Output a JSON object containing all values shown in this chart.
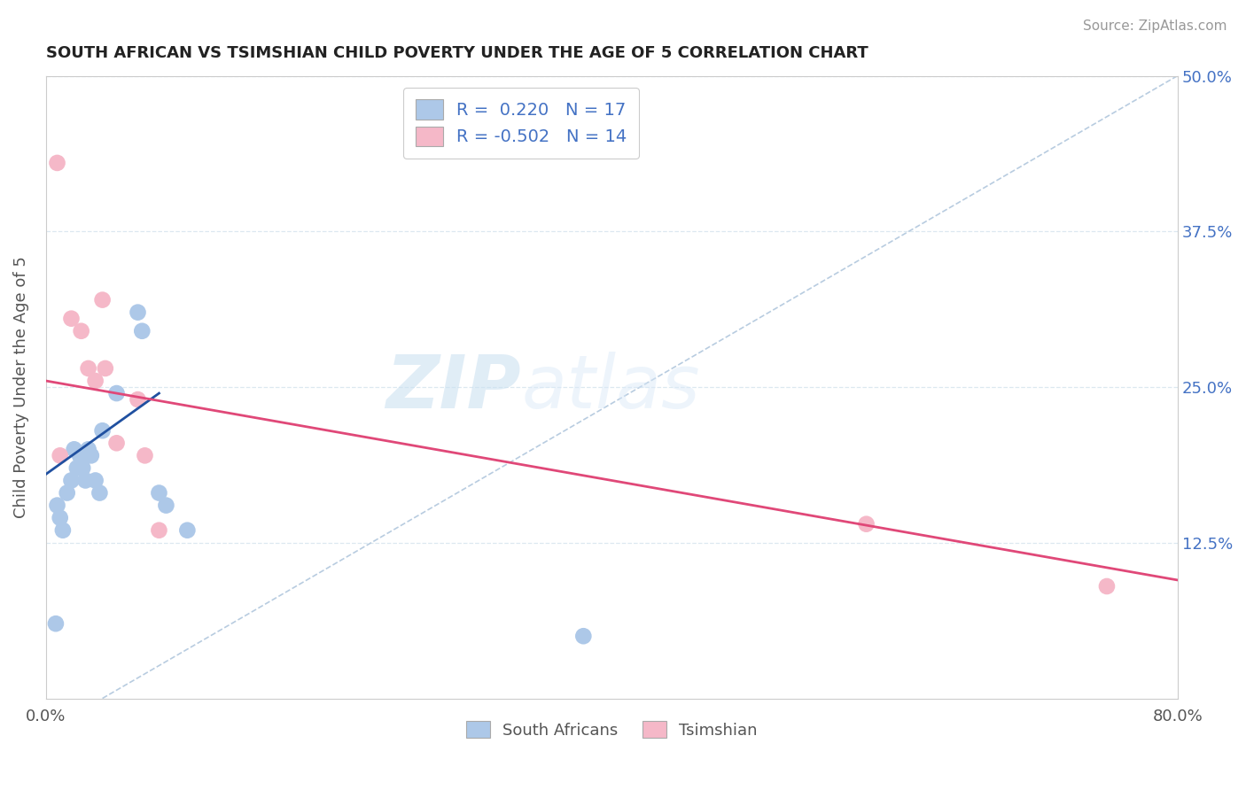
{
  "title": "SOUTH AFRICAN VS TSIMSHIAN CHILD POVERTY UNDER THE AGE OF 5 CORRELATION CHART",
  "source": "Source: ZipAtlas.com",
  "ylabel": "Child Poverty Under the Age of 5",
  "xlabel": "",
  "xlim": [
    0.0,
    0.8
  ],
  "ylim": [
    0.0,
    0.5
  ],
  "ytick_labels_right": [
    "50.0%",
    "37.5%",
    "25.0%",
    "12.5%"
  ],
  "ytick_vals_right": [
    0.5,
    0.375,
    0.25,
    0.125
  ],
  "background_color": "#ffffff",
  "watermark_text": "ZIP",
  "watermark_text2": "atlas",
  "south_african_color": "#adc8e8",
  "tsimshian_color": "#f5b8c8",
  "south_african_line_color": "#2050a0",
  "tsimshian_line_color": "#e04878",
  "dashed_line_color": "#b8cce0",
  "grid_color": "#dce8f0",
  "blue_line_x0": 0.0,
  "blue_line_y0": 0.18,
  "blue_line_x1": 0.08,
  "blue_line_y1": 0.245,
  "pink_line_x0": 0.0,
  "pink_line_y0": 0.255,
  "pink_line_x1": 0.8,
  "pink_line_y1": 0.095,
  "diag_line_x0": 0.04,
  "diag_line_y0": 0.0,
  "diag_line_x1": 0.8,
  "diag_line_y1": 0.5,
  "south_africans_x": [
    0.008,
    0.01,
    0.012,
    0.015,
    0.018,
    0.02,
    0.022,
    0.024,
    0.026,
    0.028,
    0.03,
    0.032,
    0.035,
    0.038,
    0.04,
    0.05,
    0.065,
    0.068,
    0.08,
    0.085,
    0.1,
    0.38,
    0.007
  ],
  "south_africans_y": [
    0.155,
    0.145,
    0.135,
    0.165,
    0.175,
    0.2,
    0.185,
    0.195,
    0.185,
    0.175,
    0.2,
    0.195,
    0.175,
    0.165,
    0.215,
    0.245,
    0.31,
    0.295,
    0.165,
    0.155,
    0.135,
    0.05,
    0.06
  ],
  "tsimshians_x": [
    0.008,
    0.018,
    0.025,
    0.03,
    0.035,
    0.04,
    0.042,
    0.05,
    0.065,
    0.07,
    0.08,
    0.58,
    0.75,
    0.01
  ],
  "tsimshians_y": [
    0.43,
    0.305,
    0.295,
    0.265,
    0.255,
    0.32,
    0.265,
    0.205,
    0.24,
    0.195,
    0.135,
    0.14,
    0.09,
    0.195
  ]
}
